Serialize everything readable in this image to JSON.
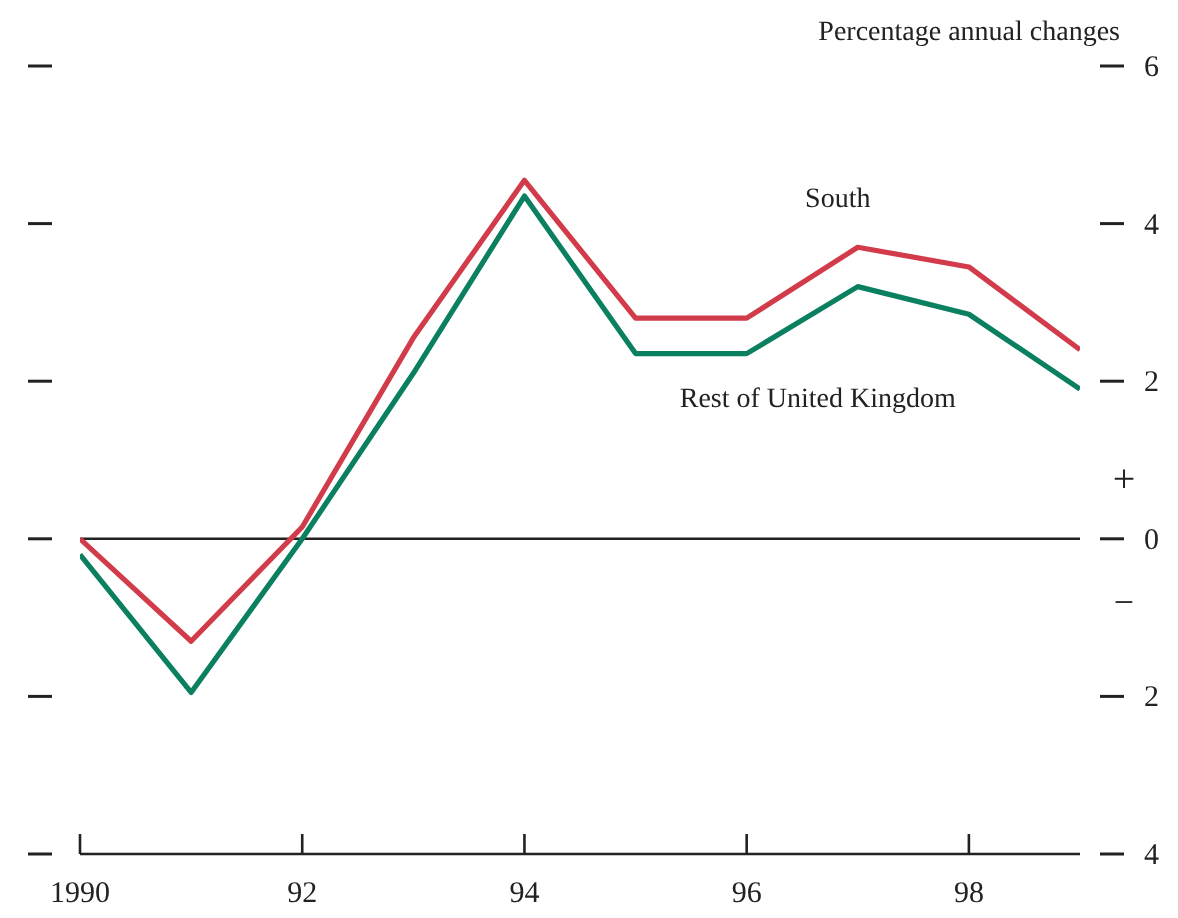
{
  "chart_data": {
    "type": "line",
    "ylabel": "Percentage annual changes",
    "x": [
      1990,
      1991,
      1992,
      1993,
      1994,
      1995,
      1996,
      1997,
      1998,
      1999
    ],
    "xlim": [
      1990,
      1999
    ],
    "xticks": [
      1990,
      {
        "value": 1992,
        "label": "92"
      },
      {
        "value": 1994,
        "label": "94"
      },
      {
        "value": 1996,
        "label": "96"
      },
      {
        "value": 1998,
        "label": "98"
      }
    ],
    "ylim": [
      -4,
      6
    ],
    "yticks": [
      {
        "value": -4,
        "label": "4"
      },
      {
        "value": -2,
        "label": "2"
      },
      0,
      2,
      4,
      6
    ],
    "series": [
      {
        "name": "South",
        "color": "#d23c4a",
        "values": [
          0,
          -1.3,
          0.15,
          2.55,
          4.55,
          2.8,
          2.8,
          3.7,
          3.45,
          2.4
        ]
      },
      {
        "name": "Rest of United Kingdom",
        "color": "#0a8060",
        "values": [
          -0.2,
          -1.95,
          0,
          2.1,
          4.35,
          2.35,
          2.35,
          3.2,
          2.85,
          1.9
        ]
      }
    ],
    "ref_lines": [
      {
        "axis": "y",
        "value": 0,
        "color": "#222222"
      }
    ],
    "annotations": [
      "+",
      "−"
    ],
    "grid": false,
    "legend": false,
    "marker": "none",
    "line_style": "solid"
  }
}
